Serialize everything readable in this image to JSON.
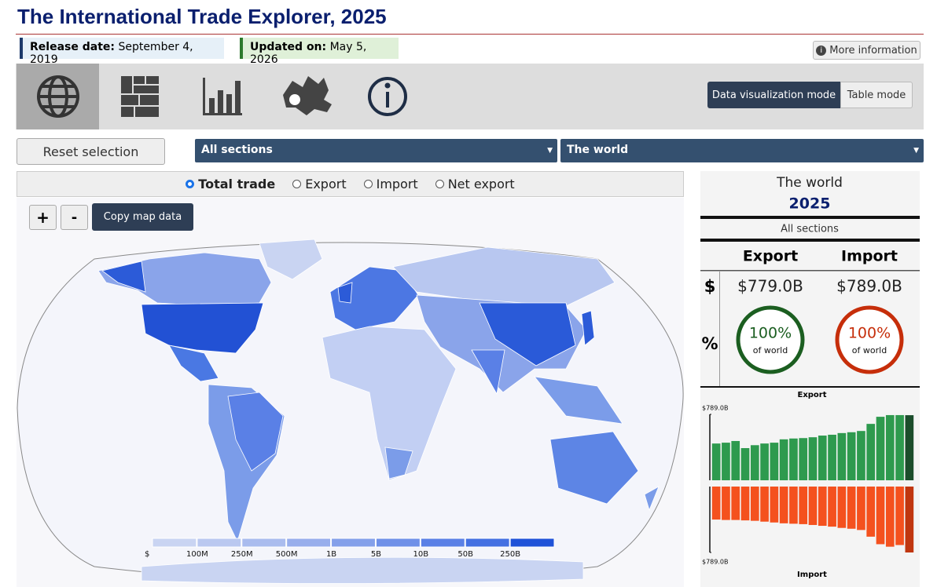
{
  "header": {
    "title": "The International Trade Explorer, 2025",
    "release_label": "Release date:",
    "release_date": "September 4, 2019",
    "updated_label": "Updated on:",
    "updated_date": "May 5, 2026",
    "more_info": "More information"
  },
  "toolbar": {
    "modes": [
      "Data visualization mode",
      "Table mode"
    ]
  },
  "controls": {
    "reset": "Reset selection",
    "section": "All sections",
    "region": "The world",
    "measures": [
      "Total trade",
      "Export",
      "Import",
      "Net export"
    ],
    "zoom_in": "+",
    "zoom_out": "-",
    "copy": "Copy map data"
  },
  "map_legend": {
    "labels": [
      "$",
      "100M",
      "250M",
      "500M",
      "1B",
      "5B",
      "10B",
      "50B",
      "250B"
    ],
    "colors": [
      "#c9d4f2",
      "#bac8f0",
      "#aabcee",
      "#98aeec",
      "#84a0ea",
      "#6f90e8",
      "#5a80e6",
      "#4470e2",
      "#1f52d8"
    ]
  },
  "summary": {
    "region": "The world",
    "year": "2025",
    "section": "All sections",
    "dollar_symbol": "$",
    "percent_symbol": "%",
    "export": {
      "header": "Export",
      "value": "$779.0B",
      "share": "100%",
      "caption": "of world"
    },
    "import": {
      "header": "Import",
      "value": "$789.0B",
      "share": "100%",
      "caption": "of world"
    }
  },
  "chart_data": {
    "type": "bar",
    "series": [
      {
        "name": "Export",
        "color": "#2e9a4e",
        "highlight_color": "#1b4d2b",
        "values": [
          440,
          450,
          470,
          385,
          420,
          440,
          450,
          490,
          500,
          505,
          515,
          535,
          545,
          565,
          575,
          590,
          675,
          760,
          780,
          780,
          779
        ]
      },
      {
        "name": "Import",
        "axis": "y2",
        "color": "#f4511e",
        "highlight_color": "#c0360f",
        "values": [
          395,
          400,
          400,
          405,
          410,
          420,
          430,
          440,
          445,
          450,
          460,
          470,
          480,
          495,
          505,
          520,
          600,
          690,
          720,
          700,
          789
        ]
      }
    ],
    "ylim": [
      0,
      789
    ],
    "yticks": [
      {
        "value": 789,
        "label": "$789.0B"
      }
    ],
    "y2lim": [
      0,
      789
    ],
    "y2ticks": [
      {
        "value": 789,
        "label": "$789.0B"
      }
    ]
  }
}
